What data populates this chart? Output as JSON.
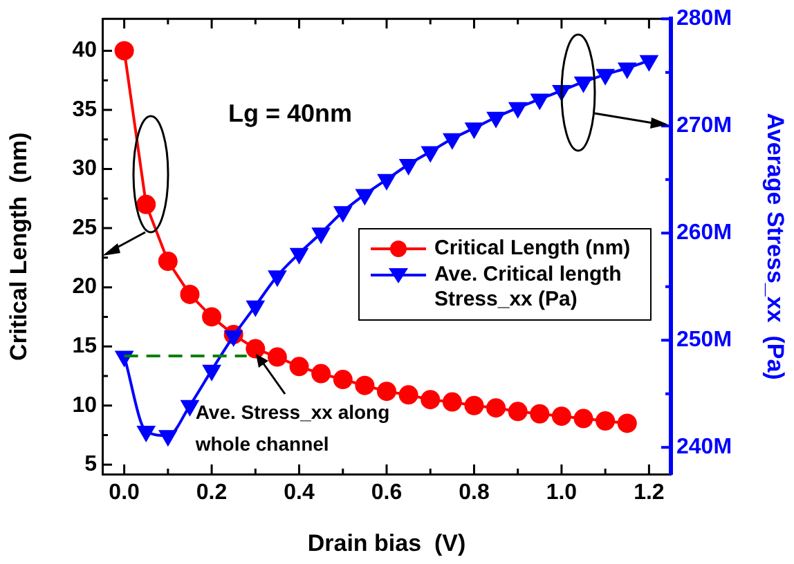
{
  "chart_data": {
    "type": "line",
    "xlabel": "Drain bias  (V)",
    "ylabel": "Critical Length  (nm)",
    "y2label": "Average Stress_xx  (Pa)",
    "xlim": [
      -0.05,
      1.25
    ],
    "xticks": [
      {
        "value": 0,
        "label": "0.0"
      },
      {
        "value": 0.2,
        "label": "0.2"
      },
      {
        "value": 0.4,
        "label": "0.4"
      },
      {
        "value": 0.6,
        "label": "0.6"
      },
      {
        "value": 0.8,
        "label": "0.8"
      },
      {
        "value": 1,
        "label": "1.0"
      },
      {
        "value": 1.2,
        "label": "1.2"
      }
    ],
    "ylim": [
      4.2,
      42.7
    ],
    "yticks": [
      5,
      10,
      15,
      20,
      25,
      30,
      35,
      40
    ],
    "y2lim": [
      237500000,
      280000000
    ],
    "y2ticks": [
      {
        "value": 240000000,
        "label": "240M"
      },
      {
        "value": 250000000,
        "label": "250M"
      },
      {
        "value": 260000000,
        "label": "260M"
      },
      {
        "value": 270000000,
        "label": "270M"
      },
      {
        "value": 280000000,
        "label": "280M"
      }
    ],
    "grid": false,
    "legend": "right",
    "line_style": "solid",
    "series": [
      {
        "name": "Critical Length (nm)",
        "color": "#ff0000",
        "marker": "circle",
        "x": [
          0,
          0.05,
          0.1,
          0.15,
          0.2,
          0.25,
          0.3,
          0.35,
          0.4,
          0.45,
          0.5,
          0.55,
          0.6,
          0.65,
          0.7,
          0.75,
          0.8,
          0.85,
          0.9,
          0.95,
          1,
          1.05,
          1.1,
          1.15
        ],
        "values": [
          40,
          27,
          22.2,
          19.4,
          17.5,
          16,
          14.8,
          14.1,
          13.3,
          12.7,
          12.2,
          11.7,
          11.2,
          10.9,
          10.5,
          10.3,
          10,
          9.8,
          9.5,
          9.3,
          9.1,
          8.9,
          8.7,
          8.5
        ]
      },
      {
        "name": "Ave. Critical length Stress_xx (Pa)",
        "color": "#0000ff",
        "marker": "triangle",
        "axis": "y2",
        "x": [
          0,
          0.05,
          0.1,
          0.15,
          0.2,
          0.25,
          0.3,
          0.35,
          0.4,
          0.45,
          0.5,
          0.55,
          0.6,
          0.65,
          0.7,
          0.75,
          0.8,
          0.85,
          0.9,
          0.95,
          1,
          1.05,
          1.1,
          1.15,
          1.2
        ],
        "values": [
          248500000,
          241500000,
          241100000,
          243900000,
          247200000,
          250400000,
          253200000,
          256000000,
          258100000,
          260000000,
          262000000,
          263600000,
          265000000,
          266400000,
          267600000,
          268800000,
          269800000,
          270800000,
          271700000,
          272500000,
          273300000,
          274100000,
          274800000,
          275400000,
          276100000
        ]
      },
      {
        "type": "line",
        "color": "#008000",
        "marker": "none",
        "line_style": "dashed",
        "x": [
          0,
          0.28
        ],
        "values": [
          14.2,
          14.2
        ]
      }
    ],
    "annotations": [
      "Lg = 40nm",
      {
        "text": "Ave. Stress_xx along whole channel",
        "x": 0.28,
        "y": 14.2
      }
    ]
  }
}
